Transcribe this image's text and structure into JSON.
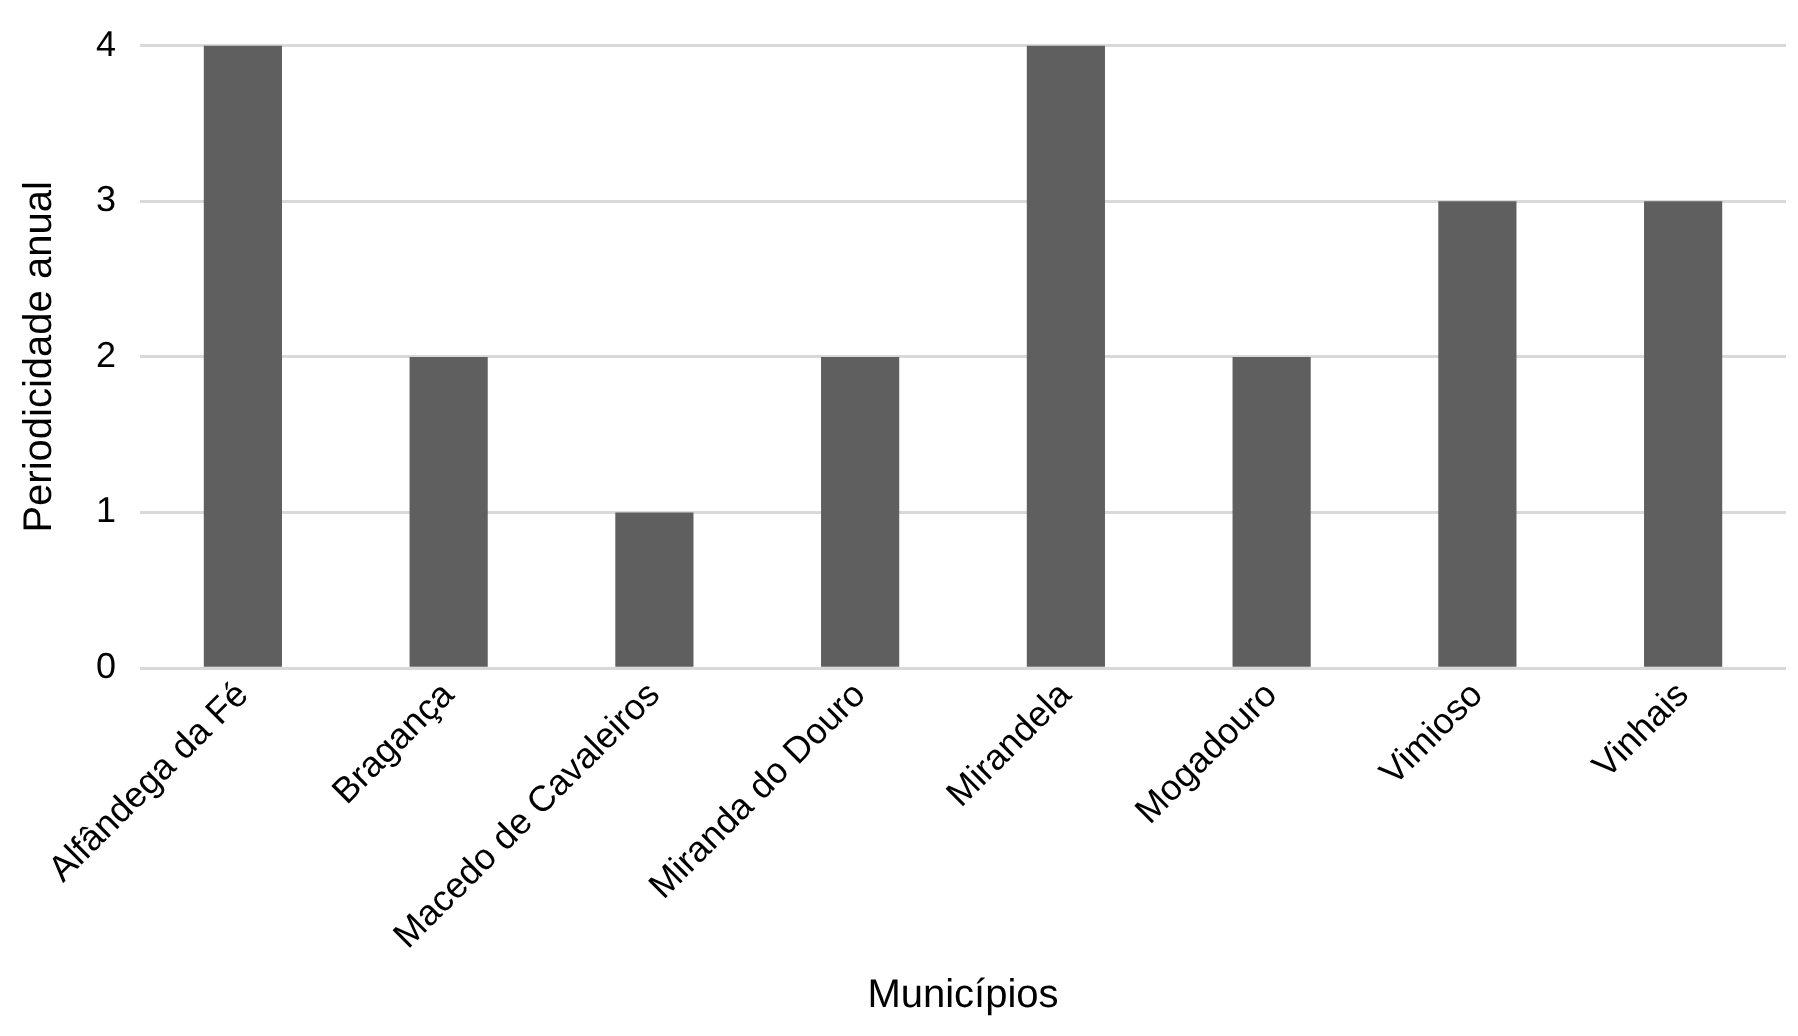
{
  "chart_data": {
    "type": "bar",
    "xlabel": "Municípios",
    "ylabel": "Periodicidade anual",
    "categories": [
      "Alfândega da Fé",
      "Bragança",
      "Macedo de Cavaleiros",
      "Miranda do Douro",
      "Mirandela",
      "Mogadouro",
      "Vimioso",
      "Vinhais"
    ],
    "values": [
      4,
      2,
      1,
      2,
      4,
      2,
      3,
      3
    ],
    "color": "#5f5f5f",
    "ylim": [
      0,
      4
    ],
    "yticks": [
      0,
      1,
      2,
      3,
      4
    ],
    "grid": "y",
    "legend": false
  }
}
